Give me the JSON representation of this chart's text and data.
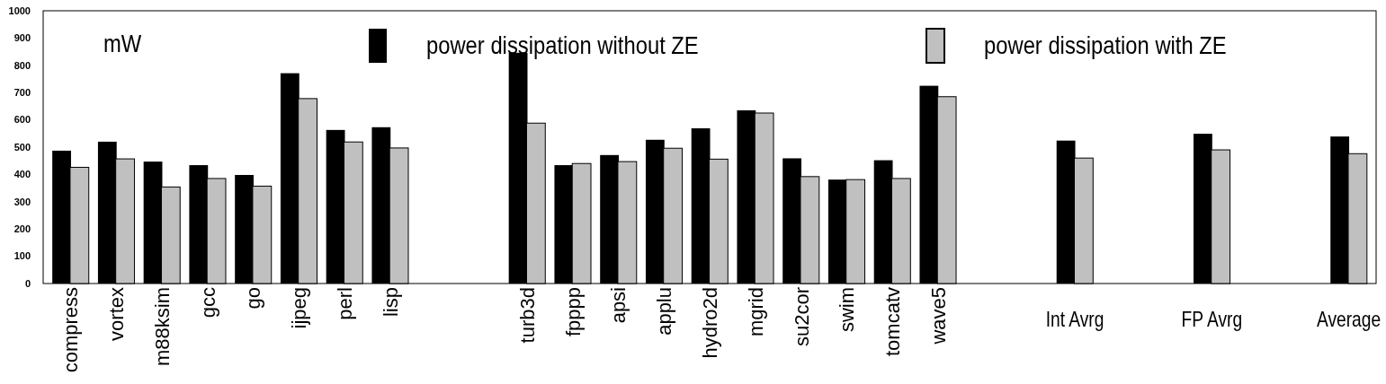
{
  "chart_data": {
    "type": "bar",
    "ylabel": "mW",
    "categories": [
      "compress",
      "vortex",
      "m88ksim",
      "gcc",
      "go",
      "ijpeg",
      "perl",
      "lisp",
      null,
      null,
      "turb3d",
      "fpppp",
      "apsi",
      "applu",
      "hydro2d",
      "mgrid",
      "su2cor",
      "swim",
      "tomcatv",
      "wave5",
      null,
      null,
      "Int Avrg",
      null,
      null,
      "FP Avrg",
      null,
      null,
      "Average"
    ],
    "series": [
      {
        "name": "power dissipation without ZE",
        "color": "#000000",
        "values": [
          487,
          520,
          447,
          434,
          398,
          771,
          563,
          573,
          null,
          null,
          846,
          434,
          471,
          527,
          569,
          635,
          459,
          381,
          452,
          725,
          null,
          null,
          524,
          null,
          null,
          549,
          null,
          null,
          539
        ]
      },
      {
        "name": "power dissipation with ZE",
        "color": "#c0c0c0",
        "values": [
          426,
          457,
          354,
          385,
          357,
          678,
          519,
          497,
          null,
          null,
          588,
          440,
          447,
          496,
          456,
          625,
          392,
          381,
          385,
          685,
          null,
          null,
          460,
          null,
          null,
          490,
          null,
          null,
          476
        ]
      }
    ],
    "ylim": [
      0,
      1000
    ],
    "yticks": [
      0,
      100,
      200,
      300,
      400,
      500,
      600,
      700,
      800,
      900,
      1000
    ],
    "grid": false,
    "legend": "top"
  }
}
